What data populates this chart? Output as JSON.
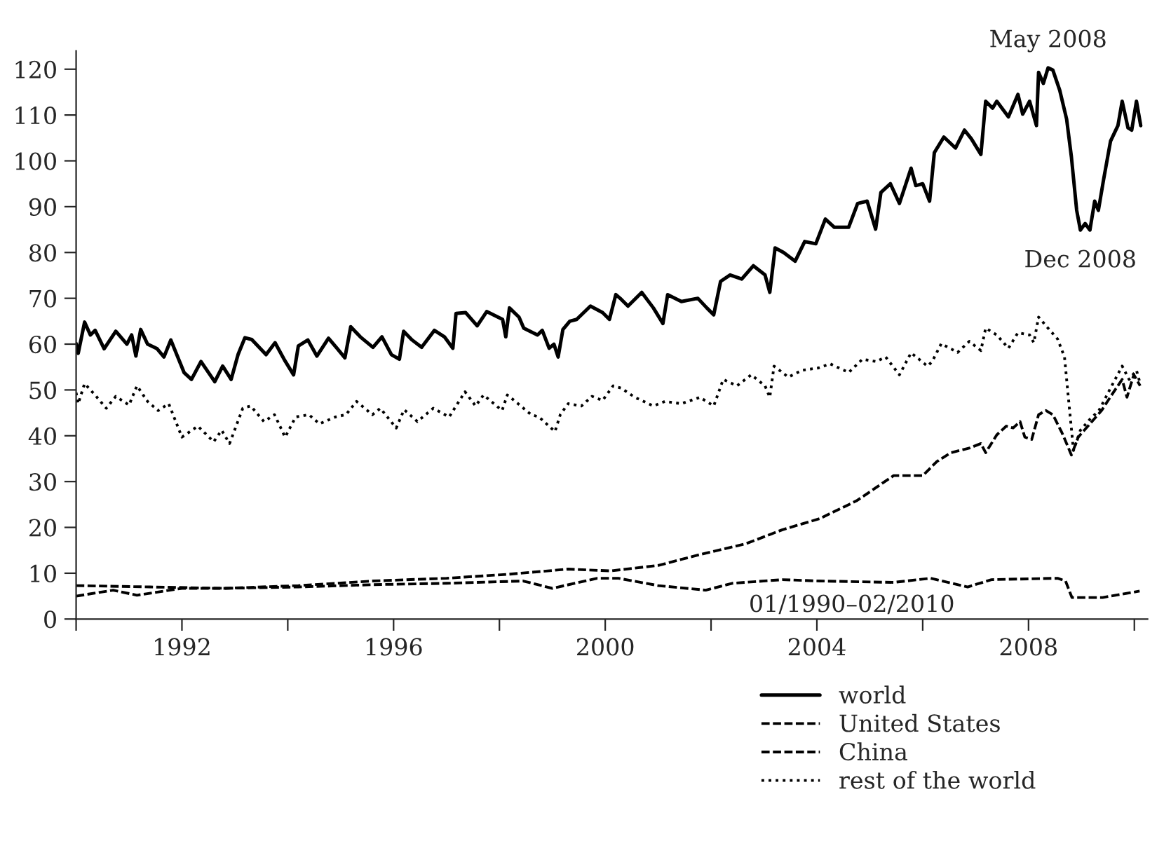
{
  "chart_data": {
    "type": "line",
    "xlim": [
      1990,
      2010.25
    ],
    "ylim": [
      0,
      124
    ],
    "xticks": [
      {
        "value": 1990,
        "label": null
      },
      1992,
      {
        "value": 1994,
        "label": null
      },
      1996,
      {
        "value": 1998,
        "label": null
      },
      2000,
      {
        "value": 2002,
        "label": null
      },
      2004,
      {
        "value": 2006,
        "label": null
      },
      2008,
      {
        "value": 2010,
        "label": null
      }
    ],
    "yticks": [
      0,
      10,
      20,
      30,
      40,
      50,
      60,
      70,
      80,
      90,
      100,
      110,
      120
    ],
    "grid": false,
    "legend": "bottom",
    "marker": "none",
    "annotations": [
      {
        "text": "May 2008",
        "x": 2008.37,
        "y": 120.3
      },
      {
        "text": "Dec 2008",
        "x": 2008.98,
        "y": 84.9
      },
      "01/1990–02/2010"
    ],
    "series": [
      {
        "name": "world",
        "color": "#000000",
        "line_style": "solid",
        "x": [
          1990.0,
          1990.04,
          1990.16,
          1990.27,
          1990.36,
          1990.53,
          1990.75,
          1990.96,
          1991.05,
          1991.13,
          1991.22,
          1991.35,
          1991.53,
          1991.66,
          1991.79,
          1992.04,
          1992.18,
          1992.36,
          1992.62,
          1992.77,
          1992.93,
          1993.06,
          1993.19,
          1993.32,
          1993.59,
          1993.76,
          1993.94,
          1994.11,
          1994.2,
          1994.38,
          1994.55,
          1994.77,
          1994.93,
          1995.08,
          1995.19,
          1995.37,
          1995.61,
          1995.78,
          1995.96,
          1996.11,
          1996.19,
          1996.35,
          1996.53,
          1996.77,
          1996.96,
          1997.12,
          1997.18,
          1997.36,
          1997.58,
          1997.76,
          1998.06,
          1998.12,
          1998.19,
          1998.37,
          1998.46,
          1998.72,
          1998.81,
          1998.94,
          1999.03,
          1999.11,
          1999.2,
          1999.33,
          1999.46,
          1999.72,
          1999.95,
          2000.08,
          2000.2,
          2000.3,
          2000.43,
          2000.69,
          2000.91,
          2001.09,
          2001.18,
          2001.44,
          2001.75,
          2001.92,
          2002.05,
          2002.18,
          2002.36,
          2002.58,
          2002.8,
          2003.02,
          2003.11,
          2003.21,
          2003.37,
          2003.59,
          2003.77,
          2003.98,
          2004.16,
          2004.33,
          2004.6,
          2004.77,
          2004.95,
          2005.11,
          2005.21,
          2005.39,
          2005.56,
          2005.78,
          2005.87,
          2006.0,
          2006.13,
          2006.22,
          2006.4,
          2006.62,
          2006.79,
          2006.92,
          2007.1,
          2007.19,
          2007.32,
          2007.4,
          2007.62,
          2007.8,
          2007.89,
          2008.02,
          2008.15,
          2008.19,
          2008.28,
          2008.37,
          2008.46,
          2008.59,
          2008.72,
          2008.81,
          2008.91,
          2008.98,
          2009.07,
          2009.16,
          2009.25,
          2009.32,
          2009.42,
          2009.55,
          2009.69,
          2009.77,
          2009.88,
          2009.95,
          2010.04,
          2010.12
        ],
        "values": [
          60.1,
          58,
          64.8,
          62,
          63,
          59,
          62.8,
          60,
          62,
          57.4,
          63.2,
          60,
          59,
          57.2,
          60.9,
          53.8,
          52.3,
          56.2,
          51.8,
          55.2,
          52.3,
          57.7,
          61.4,
          61,
          57.7,
          60.3,
          56.5,
          53.3,
          59.6,
          60.9,
          57.4,
          61.3,
          59.1,
          57,
          63.8,
          61.6,
          59.3,
          61.6,
          57.7,
          56.7,
          62.8,
          60.9,
          59.3,
          63,
          61.6,
          59.1,
          66.7,
          66.9,
          64,
          67.1,
          65.4,
          61.6,
          67.9,
          65.9,
          63.5,
          62,
          63,
          59.1,
          60,
          57.2,
          63.2,
          65,
          65.4,
          68.3,
          66.9,
          65.4,
          70.8,
          69.8,
          68.3,
          71.3,
          67.9,
          64.5,
          70.8,
          69.3,
          70,
          67.9,
          66.4,
          73.7,
          75.1,
          74.2,
          77.1,
          75.1,
          71.3,
          81,
          80,
          78.1,
          82.4,
          81.9,
          87.3,
          85.5,
          85.5,
          90.7,
          91.2,
          85.1,
          93.1,
          95,
          90.7,
          98.4,
          94.6,
          95,
          91.2,
          101.8,
          105.2,
          102.8,
          106.7,
          104.8,
          101.4,
          113,
          111.5,
          113,
          109.6,
          114.5,
          110.2,
          113,
          107.7,
          119.3,
          116.9,
          120.3,
          119.8,
          115.4,
          109.1,
          100.9,
          89.2,
          84.9,
          86.3,
          84.9,
          91.2,
          89.2,
          96,
          104.3,
          107.7,
          113,
          107.2,
          106.7,
          113,
          107.7
        ]
      },
      {
        "name": "United States",
        "color": "#000000",
        "line_style": "dashed",
        "x": [
          1990.0,
          1991.4,
          1992.8,
          1994.2,
          1995.6,
          1997.0,
          1998.45,
          1999.0,
          1999.85,
          2000.25,
          2001.0,
          2001.9,
          2002.4,
          2003.35,
          2004.05,
          2005.45,
          2006.15,
          2006.85,
          2007.3,
          2008.55,
          2008.7,
          2008.82,
          2009.4,
          2010.1
        ],
        "values": [
          7.3,
          7,
          6.7,
          7,
          7.5,
          7.8,
          8.3,
          6.7,
          8.9,
          8.9,
          7.3,
          6.3,
          7.8,
          8.6,
          8.3,
          8,
          8.9,
          7,
          8.6,
          8.9,
          8.3,
          4.7,
          4.7,
          6.1
        ]
      },
      {
        "name": "China",
        "color": "#000000",
        "line_style": "dashed",
        "x": [
          1990.0,
          1990.7,
          1991.15,
          1992.0,
          1992.8,
          1994.2,
          1995.6,
          1997.0,
          1998.2,
          1999.3,
          2000.1,
          2001.0,
          2001.8,
          2002.65,
          2003.35,
          2004.05,
          2004.75,
          2005.45,
          2006.0,
          2006.27,
          2006.53,
          2006.88,
          2007.1,
          2007.19,
          2007.4,
          2007.58,
          2007.71,
          2007.84,
          2007.93,
          2008.06,
          2008.19,
          2008.33,
          2008.46,
          2008.63,
          2008.72,
          2008.81,
          2008.94,
          2009.16,
          2009.38,
          2009.6,
          2009.77,
          2009.86,
          2009.99,
          2010.11
        ],
        "values": [
          5,
          6.3,
          5.2,
          6.7,
          6.7,
          7.3,
          8.3,
          8.9,
          9.8,
          10.9,
          10.5,
          11.7,
          14.1,
          16.4,
          19.5,
          21.9,
          25.8,
          31.3,
          31.3,
          34.4,
          36.3,
          37.3,
          38.3,
          36.3,
          40.2,
          42.1,
          41.7,
          43.1,
          39.7,
          39.2,
          44.6,
          45.5,
          44.6,
          40.7,
          38.3,
          35.8,
          39.7,
          42.6,
          45.5,
          49.4,
          52.3,
          48.4,
          53.3,
          50.9
        ]
      },
      {
        "name": "rest of the world",
        "color": "#000000",
        "line_style": "dotted",
        "x": [
          1990.0,
          1990.04,
          1990.16,
          1990.35,
          1990.57,
          1990.75,
          1991.0,
          1991.15,
          1991.35,
          1991.55,
          1991.75,
          1992.0,
          1992.3,
          1992.6,
          1992.75,
          1992.9,
          1993.15,
          1993.3,
          1993.55,
          1993.75,
          1993.95,
          1994.15,
          1994.4,
          1994.6,
          1994.9,
          1995.1,
          1995.3,
          1995.6,
          1995.75,
          1996.05,
          1996.2,
          1996.45,
          1996.75,
          1997.05,
          1997.35,
          1997.55,
          1997.7,
          1998.05,
          1998.15,
          1998.3,
          1998.6,
          1998.75,
          1999.05,
          1999.15,
          1999.3,
          1999.55,
          1999.75,
          1999.95,
          2000.15,
          2000.3,
          2000.56,
          2000.91,
          2001.13,
          2001.44,
          2001.79,
          2002.05,
          2002.23,
          2002.49,
          2002.76,
          2003.02,
          2003.11,
          2003.19,
          2003.46,
          2003.72,
          2004.03,
          2004.25,
          2004.51,
          2004.6,
          2004.86,
          2005.12,
          2005.3,
          2005.56,
          2005.78,
          2006.09,
          2006.18,
          2006.35,
          2006.66,
          2006.88,
          2007.1,
          2007.19,
          2007.4,
          2007.62,
          2007.8,
          2008.02,
          2008.1,
          2008.19,
          2008.33,
          2008.55,
          2008.68,
          2008.76,
          2008.85,
          2008.98,
          2009.16,
          2009.33,
          2009.55,
          2009.77,
          2009.9,
          2010.04,
          2010.11
        ],
        "values": [
          49.4,
          47,
          51.4,
          49,
          46,
          48.6,
          46.7,
          50.9,
          47.5,
          45.5,
          47,
          39.7,
          42.1,
          38.7,
          41.2,
          38.3,
          46,
          46.5,
          43.1,
          44.6,
          39.7,
          44.1,
          44.6,
          42.6,
          44.1,
          44.6,
          47.5,
          44.6,
          46,
          41.7,
          45.7,
          43.1,
          46,
          44.1,
          49.6,
          46.5,
          48.9,
          45.5,
          48.9,
          47.5,
          44.6,
          44.1,
          40.9,
          44.6,
          47,
          46.5,
          48.6,
          47.7,
          50.9,
          50.4,
          48.4,
          46.5,
          47.5,
          47,
          48.4,
          46.5,
          52.3,
          50.9,
          53.3,
          50.9,
          48.4,
          55.2,
          52.8,
          54.3,
          54.8,
          55.7,
          54.3,
          53.8,
          56.7,
          56.2,
          57.2,
          53.3,
          58.1,
          55.2,
          56.2,
          60.1,
          58.2,
          60.6,
          58.6,
          63.5,
          62,
          59.1,
          62.5,
          62,
          60.3,
          65.9,
          64,
          61.1,
          57.2,
          47.5,
          36.8,
          41.2,
          43.6,
          45.5,
          50.4,
          55.2,
          52.3,
          54.3,
          51.4
        ]
      }
    ]
  }
}
